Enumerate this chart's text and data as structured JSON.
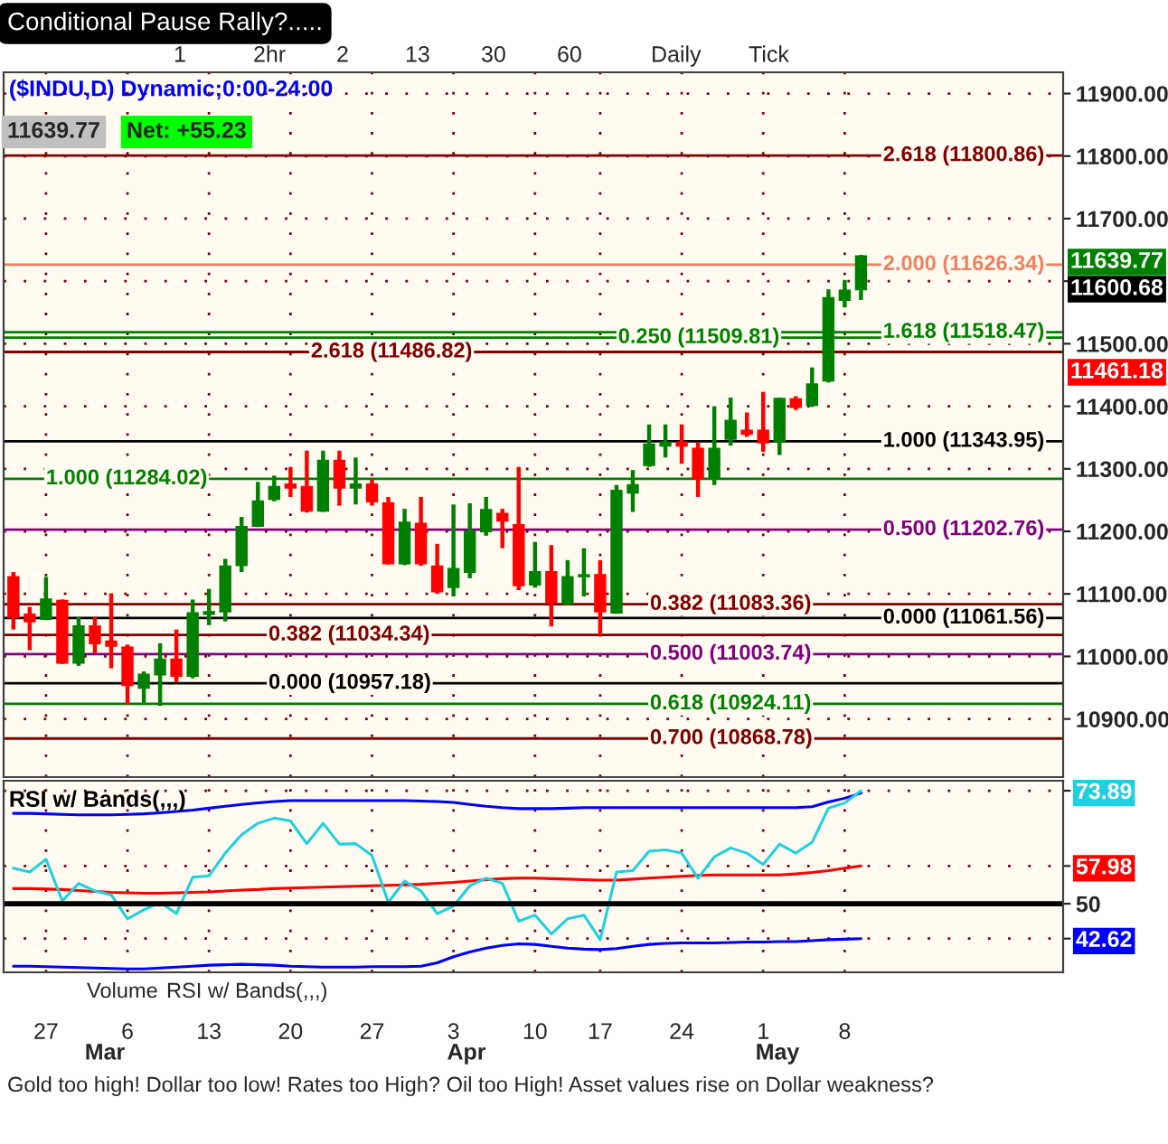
{
  "chart_data": [
    {
      "type": "candlestick",
      "title": "Conditional Pause Rally?.....",
      "subtitle": "($INDU,D) Dynamic;0:00-24:00",
      "categories": [
        null,
        null,
        null,
        null,
        null,
        null,
        null,
        null,
        null,
        null,
        null,
        null,
        null,
        null,
        null,
        null,
        null,
        null,
        null,
        null,
        null,
        null,
        null,
        null,
        null,
        null,
        null,
        null,
        null,
        null,
        null,
        null,
        null,
        null,
        null,
        null,
        null,
        null,
        null,
        null,
        null,
        null,
        null,
        null,
        null,
        null,
        null,
        null,
        null,
        null,
        null,
        null,
        null,
        null,
        null,
        null,
        null,
        null,
        null,
        null,
        null,
        null,
        null,
        null,
        null
      ],
      "ohlc": [
        [
          11127,
          11135,
          11043,
          11063
        ],
        [
          11067,
          11079,
          11010,
          11056
        ],
        [
          11060,
          11127,
          11058,
          11091
        ],
        [
          11089,
          11091,
          10988,
          10990
        ],
        [
          10990,
          11063,
          10985,
          11048
        ],
        [
          11048,
          11063,
          11005,
          11021
        ],
        [
          11024,
          11101,
          10981,
          11017
        ],
        [
          11014,
          11019,
          10923,
          10954
        ],
        [
          10950,
          10976,
          10923,
          10971
        ],
        [
          10971,
          11021,
          10921,
          10995
        ],
        [
          10995,
          11043,
          10959,
          10969
        ],
        [
          10969,
          11091,
          10965,
          11069
        ],
        [
          11068,
          11108,
          11050,
          11071
        ],
        [
          11072,
          11156,
          11056,
          11144
        ],
        [
          11146,
          11223,
          11135,
          11207
        ],
        [
          11209,
          11279,
          11207,
          11248
        ],
        [
          11252,
          11289,
          11248,
          11271
        ],
        [
          11275,
          11303,
          11255,
          11270
        ],
        [
          11271,
          11329,
          11230,
          11233
        ],
        [
          11233,
          11329,
          11231,
          11313
        ],
        [
          11313,
          11329,
          11241,
          11270
        ],
        [
          11270,
          11318,
          11243,
          11275
        ],
        [
          11275,
          11284,
          11241,
          11248
        ],
        [
          11245,
          11255,
          11147,
          11149
        ],
        [
          11149,
          11236,
          11146,
          11214
        ],
        [
          11212,
          11255,
          11145,
          11149
        ],
        [
          11144,
          11180,
          11100,
          11104
        ],
        [
          11111,
          11243,
          11096,
          11140
        ],
        [
          11135,
          11245,
          11125,
          11200
        ],
        [
          11200,
          11255,
          11193,
          11234
        ],
        [
          11228,
          11236,
          11173,
          11217
        ],
        [
          11210,
          11303,
          11106,
          11114
        ],
        [
          11115,
          11183,
          11110,
          11135
        ],
        [
          11135,
          11178,
          11048,
          11087
        ],
        [
          11085,
          11154,
          11082,
          11127
        ],
        [
          11128,
          11173,
          11096,
          11130
        ],
        [
          11130,
          11154,
          11034,
          11072
        ],
        [
          11070,
          11274,
          11068,
          11265
        ],
        [
          11262,
          11298,
          11231,
          11274
        ],
        [
          11306,
          11371,
          11303,
          11339
        ],
        [
          11337,
          11371,
          11318,
          11342
        ],
        [
          11342,
          11371,
          11308,
          11337
        ],
        [
          11332,
          11342,
          11255,
          11284
        ],
        [
          11284,
          11400,
          11274,
          11332
        ],
        [
          11348,
          11414,
          11337,
          11377
        ],
        [
          11361,
          11390,
          11351,
          11356
        ],
        [
          11361,
          11423,
          11327,
          11342
        ],
        [
          11344,
          11414,
          11322,
          11412
        ],
        [
          11411,
          11416,
          11394,
          11399
        ],
        [
          11402,
          11462,
          11399,
          11435
        ],
        [
          11441,
          11587,
          11438,
          11573
        ],
        [
          11570,
          11602,
          11558,
          11585
        ],
        [
          11587,
          11642,
          11570,
          11639.77
        ],
        null,
        null,
        null,
        null,
        null,
        null,
        null,
        null,
        null,
        null,
        null,
        null
      ],
      "ylim": [
        10807,
        11934
      ],
      "yticks": [
        {
          "value": 10900,
          "label": "10900.00"
        },
        {
          "value": 11000,
          "label": "11000.00"
        },
        {
          "value": 11100,
          "label": "11100.00"
        },
        {
          "value": 11200,
          "label": "11200.00"
        },
        {
          "value": 11300,
          "label": "11300.00"
        },
        {
          "value": 11400,
          "label": "11400.00"
        },
        {
          "value": 11500,
          "label": "11500.00"
        },
        {
          "value": 11600,
          "label": null
        },
        {
          "value": 11700,
          "label": "11700.00"
        },
        {
          "value": 11800,
          "label": "11800.00"
        },
        {
          "value": 11900,
          "label": "11900.00"
        }
      ],
      "tick_labels": "y",
      "grid": true,
      "ref_lines": [
        {
          "axis": "y",
          "value": 11800.86,
          "label": "2.618 (11800.86)",
          "color": "#800000"
        },
        {
          "axis": "y",
          "value": 11626.34,
          "label": "2.000 (11626.34)",
          "color": "#f08060"
        },
        {
          "axis": "y",
          "value": 11518.47,
          "label": "1.618 (11518.47)",
          "color": "#008000"
        },
        {
          "axis": "y",
          "value": 11343.95,
          "label": "1.000 (11343.95)",
          "color": "#000000"
        },
        {
          "axis": "y",
          "value": 11202.76,
          "label": "0.500 (11202.76)",
          "color": "#800080"
        },
        {
          "axis": "y",
          "value": 11061.56,
          "label": "0.000 (11061.56)",
          "color": "#000000"
        },
        {
          "axis": "y",
          "value": 11083.36,
          "label": "0.382 (11083.36)",
          "color": "#800000"
        },
        {
          "axis": "y",
          "value": 11003.74,
          "label": "0.500 (11003.74)",
          "color": "#800080"
        },
        {
          "axis": "y",
          "value": 10924.11,
          "label": "0.618 (10924.11)",
          "color": "#008000"
        },
        {
          "axis": "y",
          "value": 10868.78,
          "label": "0.700 (10868.78)",
          "color": "#800000"
        },
        {
          "axis": "y",
          "value": 11284.02,
          "label": "1.000 (11284.02)",
          "color": "#008000"
        },
        {
          "axis": "y",
          "value": 11034.34,
          "label": "0.382 (11034.34)",
          "color": "#800000"
        },
        {
          "axis": "y",
          "value": 10957.18,
          "label": "0.000 (10957.18)",
          "color": "#000000"
        },
        {
          "axis": "y",
          "value": 11486.82,
          "label": "2.618 (11486.82)",
          "color": "#800000"
        },
        {
          "axis": "y",
          "value": 11509.81,
          "label": "0.250 (11509.81)",
          "color": "#008000"
        }
      ],
      "annotations": [
        "11639.77",
        "Net: +55.23",
        "1",
        "2hr",
        "2",
        "13",
        "30",
        "60",
        "Daily",
        "Tick",
        "Volume",
        "RSI w/ Bands(,,,)",
        "Gold too high! Dollar too low! Rates too High? Oil too High! Asset values rise on Dollar weakness?",
        "Mar",
        "Apr",
        "May",
        "11639.77",
        "11600.68",
        "11461.18"
      ]
    },
    {
      "type": "line",
      "title": "RSI w/ Bands(,,,)",
      "categories": [
        null,
        null,
        "27",
        null,
        null,
        null,
        null,
        "6",
        null,
        null,
        null,
        null,
        "13",
        null,
        null,
        null,
        null,
        "20",
        null,
        null,
        null,
        null,
        "27",
        null,
        null,
        null,
        null,
        "3",
        null,
        null,
        null,
        null,
        "10",
        null,
        null,
        null,
        "17",
        null,
        null,
        null,
        null,
        "24",
        null,
        null,
        null,
        null,
        "1",
        null,
        null,
        null,
        null,
        "8",
        null,
        null,
        null,
        null,
        null,
        null,
        null,
        null,
        null,
        null,
        null,
        null,
        null
      ],
      "series": [
        {
          "color": "#0000ff",
          "values": [
            69.1,
            69.1,
            69.0,
            68.9,
            68.8,
            68.8,
            68.8,
            68.9,
            69.0,
            69.2,
            69.5,
            69.8,
            70.2,
            70.6,
            71.0,
            71.3,
            71.6,
            71.8,
            71.8,
            71.8,
            71.8,
            71.8,
            71.8,
            71.8,
            71.8,
            71.7,
            71.6,
            71.4,
            71.0,
            70.6,
            70.3,
            70.1,
            70.1,
            70.1,
            70.2,
            70.3,
            70.3,
            70.3,
            70.3,
            70.3,
            70.3,
            70.3,
            70.3,
            70.3,
            70.3,
            70.3,
            70.3,
            70.3,
            70.3,
            70.5,
            71.5,
            72.3,
            73.4,
            null,
            null,
            null,
            null,
            null,
            null,
            null,
            null,
            null,
            null,
            null,
            null
          ]
        },
        {
          "color": "#ff0000",
          "values": [
            53.2,
            53.2,
            53.1,
            53.0,
            52.8,
            52.6,
            52.4,
            52.3,
            52.2,
            52.2,
            52.3,
            52.4,
            52.5,
            52.7,
            52.9,
            53.0,
            53.2,
            53.3,
            53.4,
            53.5,
            53.6,
            53.7,
            53.8,
            53.9,
            54.0,
            54.1,
            54.3,
            54.5,
            54.8,
            55.1,
            55.3,
            55.4,
            55.4,
            55.3,
            55.2,
            55.1,
            55.0,
            55.0,
            55.2,
            55.4,
            55.6,
            55.8,
            56.0,
            56.1,
            56.1,
            56.1,
            56.1,
            56.1,
            56.3,
            56.6,
            57.0,
            57.5,
            57.98,
            null,
            null,
            null,
            null,
            null,
            null,
            null,
            null,
            null,
            null,
            null,
            null
          ]
        },
        {
          "color": "#0000ff",
          "values": [
            36.8,
            36.8,
            36.7,
            36.6,
            36.5,
            36.4,
            36.3,
            36.2,
            36.2,
            36.4,
            36.6,
            36.8,
            37.0,
            37.1,
            37.2,
            37.1,
            37.0,
            36.8,
            36.7,
            36.6,
            36.6,
            36.6,
            36.7,
            36.7,
            36.7,
            36.8,
            37.5,
            38.8,
            39.8,
            40.6,
            41.2,
            41.5,
            41.4,
            41.0,
            40.6,
            40.4,
            40.3,
            40.5,
            41.0,
            41.4,
            41.6,
            41.7,
            41.7,
            41.7,
            41.8,
            41.9,
            41.9,
            42.0,
            42.0,
            42.2,
            42.4,
            42.5,
            42.62,
            null,
            null,
            null,
            null,
            null,
            null,
            null,
            null,
            null,
            null,
            null,
            null
          ]
        },
        {
          "color": "#20d0e0",
          "values": [
            57.5,
            56.7,
            59.4,
            50.6,
            54.3,
            52.7,
            51.9,
            46.8,
            48.7,
            50.3,
            47.9,
            55.6,
            55.9,
            60.7,
            64.6,
            67.0,
            68.1,
            67.5,
            62.7,
            67.0,
            62.6,
            62.7,
            60.2,
            50.3,
            54.8,
            52.7,
            47.9,
            49.5,
            53.8,
            55.4,
            54.3,
            46.3,
            47.6,
            43.6,
            46.8,
            47.6,
            42.4,
            56.7,
            57.0,
            61.1,
            61.4,
            60.7,
            55.4,
            59.9,
            61.8,
            60.7,
            58.3,
            62.6,
            60.7,
            63.0,
            70.2,
            71.3,
            73.89,
            null,
            null,
            null,
            null,
            null,
            null,
            null,
            null,
            null,
            null,
            null,
            null
          ]
        }
      ],
      "ylim": [
        35.5,
        76
      ],
      "yticks": [
        {
          "value": 42.62,
          "label": "42.62"
        },
        50,
        {
          "value": 57.98,
          "label": "57.98"
        },
        {
          "value": 73.89,
          "label": "73.89"
        }
      ],
      "grid": true,
      "ref_lines": [
        {
          "axis": "y",
          "value": 50,
          "color": "#000000"
        }
      ]
    }
  ]
}
